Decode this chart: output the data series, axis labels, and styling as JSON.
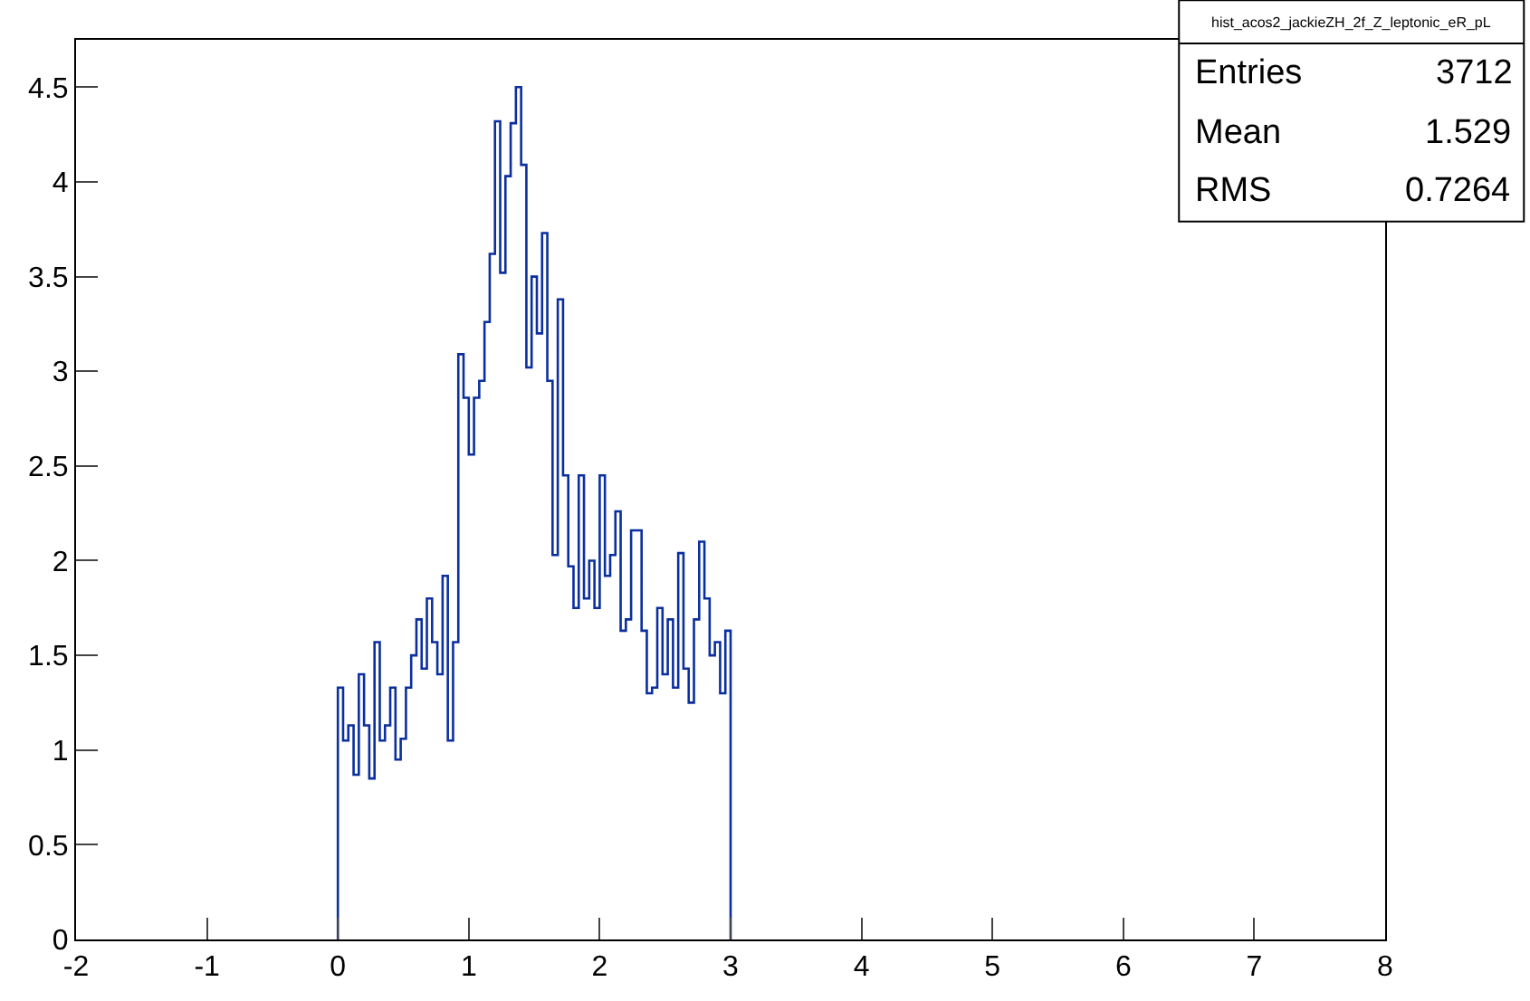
{
  "chart_data": {
    "type": "histogram",
    "color": "#0b2f9e",
    "bins": [
      0,
      0.04,
      0.08,
      0.12,
      0.16,
      0.2,
      0.24,
      0.28,
      0.32,
      0.36,
      0.4,
      0.44,
      0.48,
      0.52,
      0.56,
      0.6,
      0.64,
      0.68,
      0.72,
      0.76,
      0.8,
      0.84,
      0.88,
      0.92,
      0.96,
      1,
      1.04,
      1.08,
      1.12,
      1.16,
      1.2,
      1.24,
      1.28,
      1.32,
      1.36,
      1.4,
      1.44,
      1.48,
      1.52,
      1.56,
      1.6,
      1.64,
      1.68,
      1.72,
      1.76,
      1.8,
      1.84,
      1.88,
      1.92,
      1.96,
      2,
      2.04,
      2.08,
      2.12,
      2.16,
      2.2,
      2.24,
      2.28,
      2.32,
      2.36,
      2.4,
      2.44,
      2.48,
      2.52,
      2.56,
      2.6,
      2.64,
      2.68,
      2.72,
      2.76,
      2.8,
      2.84,
      2.88,
      2.92,
      2.96,
      3
    ],
    "values": [
      1.33,
      1.05,
      1.13,
      0.87,
      1.4,
      1.13,
      0.85,
      1.57,
      1.05,
      1.13,
      1.33,
      0.95,
      1.06,
      1.33,
      1.5,
      1.69,
      1.43,
      1.8,
      1.57,
      1.4,
      1.92,
      1.05,
      1.57,
      3.09,
      2.86,
      2.56,
      2.86,
      2.95,
      3.26,
      3.62,
      4.32,
      3.52,
      4.03,
      4.31,
      4.5,
      4.09,
      3.02,
      3.5,
      3.2,
      3.73,
      2.95,
      2.03,
      3.38,
      2.45,
      1.97,
      1.75,
      2.45,
      1.8,
      2.0,
      1.75,
      2.45,
      1.92,
      2.03,
      2.26,
      1.63,
      1.69,
      2.16,
      2.16,
      1.63,
      1.3,
      1.33,
      1.75,
      1.4,
      1.69,
      1.33,
      2.04,
      1.43,
      1.25,
      1.69,
      2.1,
      1.8,
      1.5,
      1.57,
      1.3,
      1.63
    ],
    "xlim": [
      -2,
      8
    ],
    "xticks": [
      -2,
      -1,
      0,
      1,
      2,
      3,
      4,
      5,
      6,
      7,
      8
    ],
    "ylim": [
      0,
      4.75
    ],
    "yticks": [
      0,
      0.5,
      1,
      1.5,
      2,
      2.5,
      3,
      3.5,
      4,
      4.5
    ],
    "grid": false,
    "annotations": [
      "hist_acos2_jackieZH_2f_Z_leptonic_eR_pL",
      "Entries",
      "3712",
      "Mean",
      "1.529",
      "RMS",
      "0.7264"
    ]
  }
}
